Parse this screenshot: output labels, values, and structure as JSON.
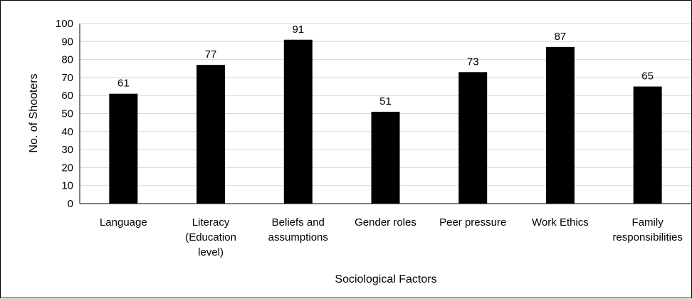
{
  "chart_data": {
    "type": "bar",
    "title": "",
    "xlabel": "Sociological Factors",
    "ylabel": "No. of Shooters",
    "categories": [
      [
        "Language"
      ],
      [
        "Literacy",
        "(Education",
        "level)"
      ],
      [
        "Beliefs and",
        "assumptions"
      ],
      [
        "Gender roles"
      ],
      [
        "Peer pressure"
      ],
      [
        "Work Ethics"
      ],
      [
        "Family",
        "responsibilities"
      ]
    ],
    "values": [
      61,
      77,
      91,
      51,
      73,
      87,
      65
    ],
    "ylim": [
      0,
      100
    ],
    "yticks": [
      0,
      10,
      20,
      30,
      40,
      50,
      60,
      70,
      80,
      90,
      100
    ],
    "grid": true,
    "legend": "none",
    "colors": {
      "bar": "#000000",
      "grid": "#d9d9d9",
      "axis": "#000000",
      "text": "#000000"
    }
  }
}
